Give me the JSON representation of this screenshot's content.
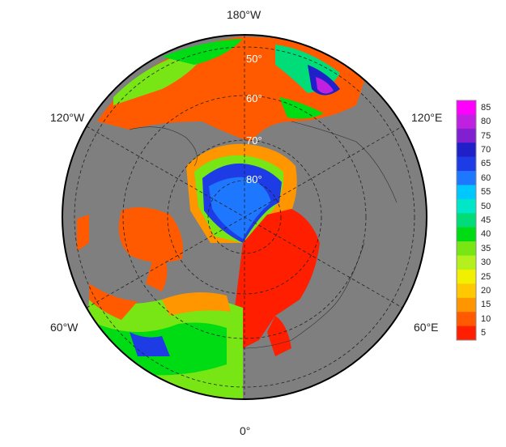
{
  "map": {
    "projection": "north-polar-stereographic",
    "longitude_labels": {
      "top": "180°W",
      "upper_left": "120°W",
      "upper_right": "120°E",
      "lower_left": "60°W",
      "lower_right": "60°E",
      "bottom": "0°"
    },
    "latitude_labels": [
      "50°",
      "60°",
      "70°",
      "80°"
    ],
    "colors": {
      "land": "#7f7f7f",
      "background": "#ffffff",
      "grid": "#222222",
      "lat_label": "#ffffff"
    }
  },
  "colorbar": {
    "ticks": [
      "85",
      "80",
      "75",
      "70",
      "65",
      "60",
      "55",
      "50",
      "45",
      "40",
      "35",
      "30",
      "25",
      "20",
      "15",
      "10",
      "5"
    ],
    "colors": [
      "#ff00ff",
      "#c020e0",
      "#8020d0",
      "#2020c8",
      "#1e3ce6",
      "#1e78ff",
      "#00c8ff",
      "#00e6c8",
      "#00dc78",
      "#00dc14",
      "#78e614",
      "#b4f01e",
      "#f0f000",
      "#ffc800",
      "#ff9600",
      "#ff5a00",
      "#ff1e00"
    ]
  }
}
